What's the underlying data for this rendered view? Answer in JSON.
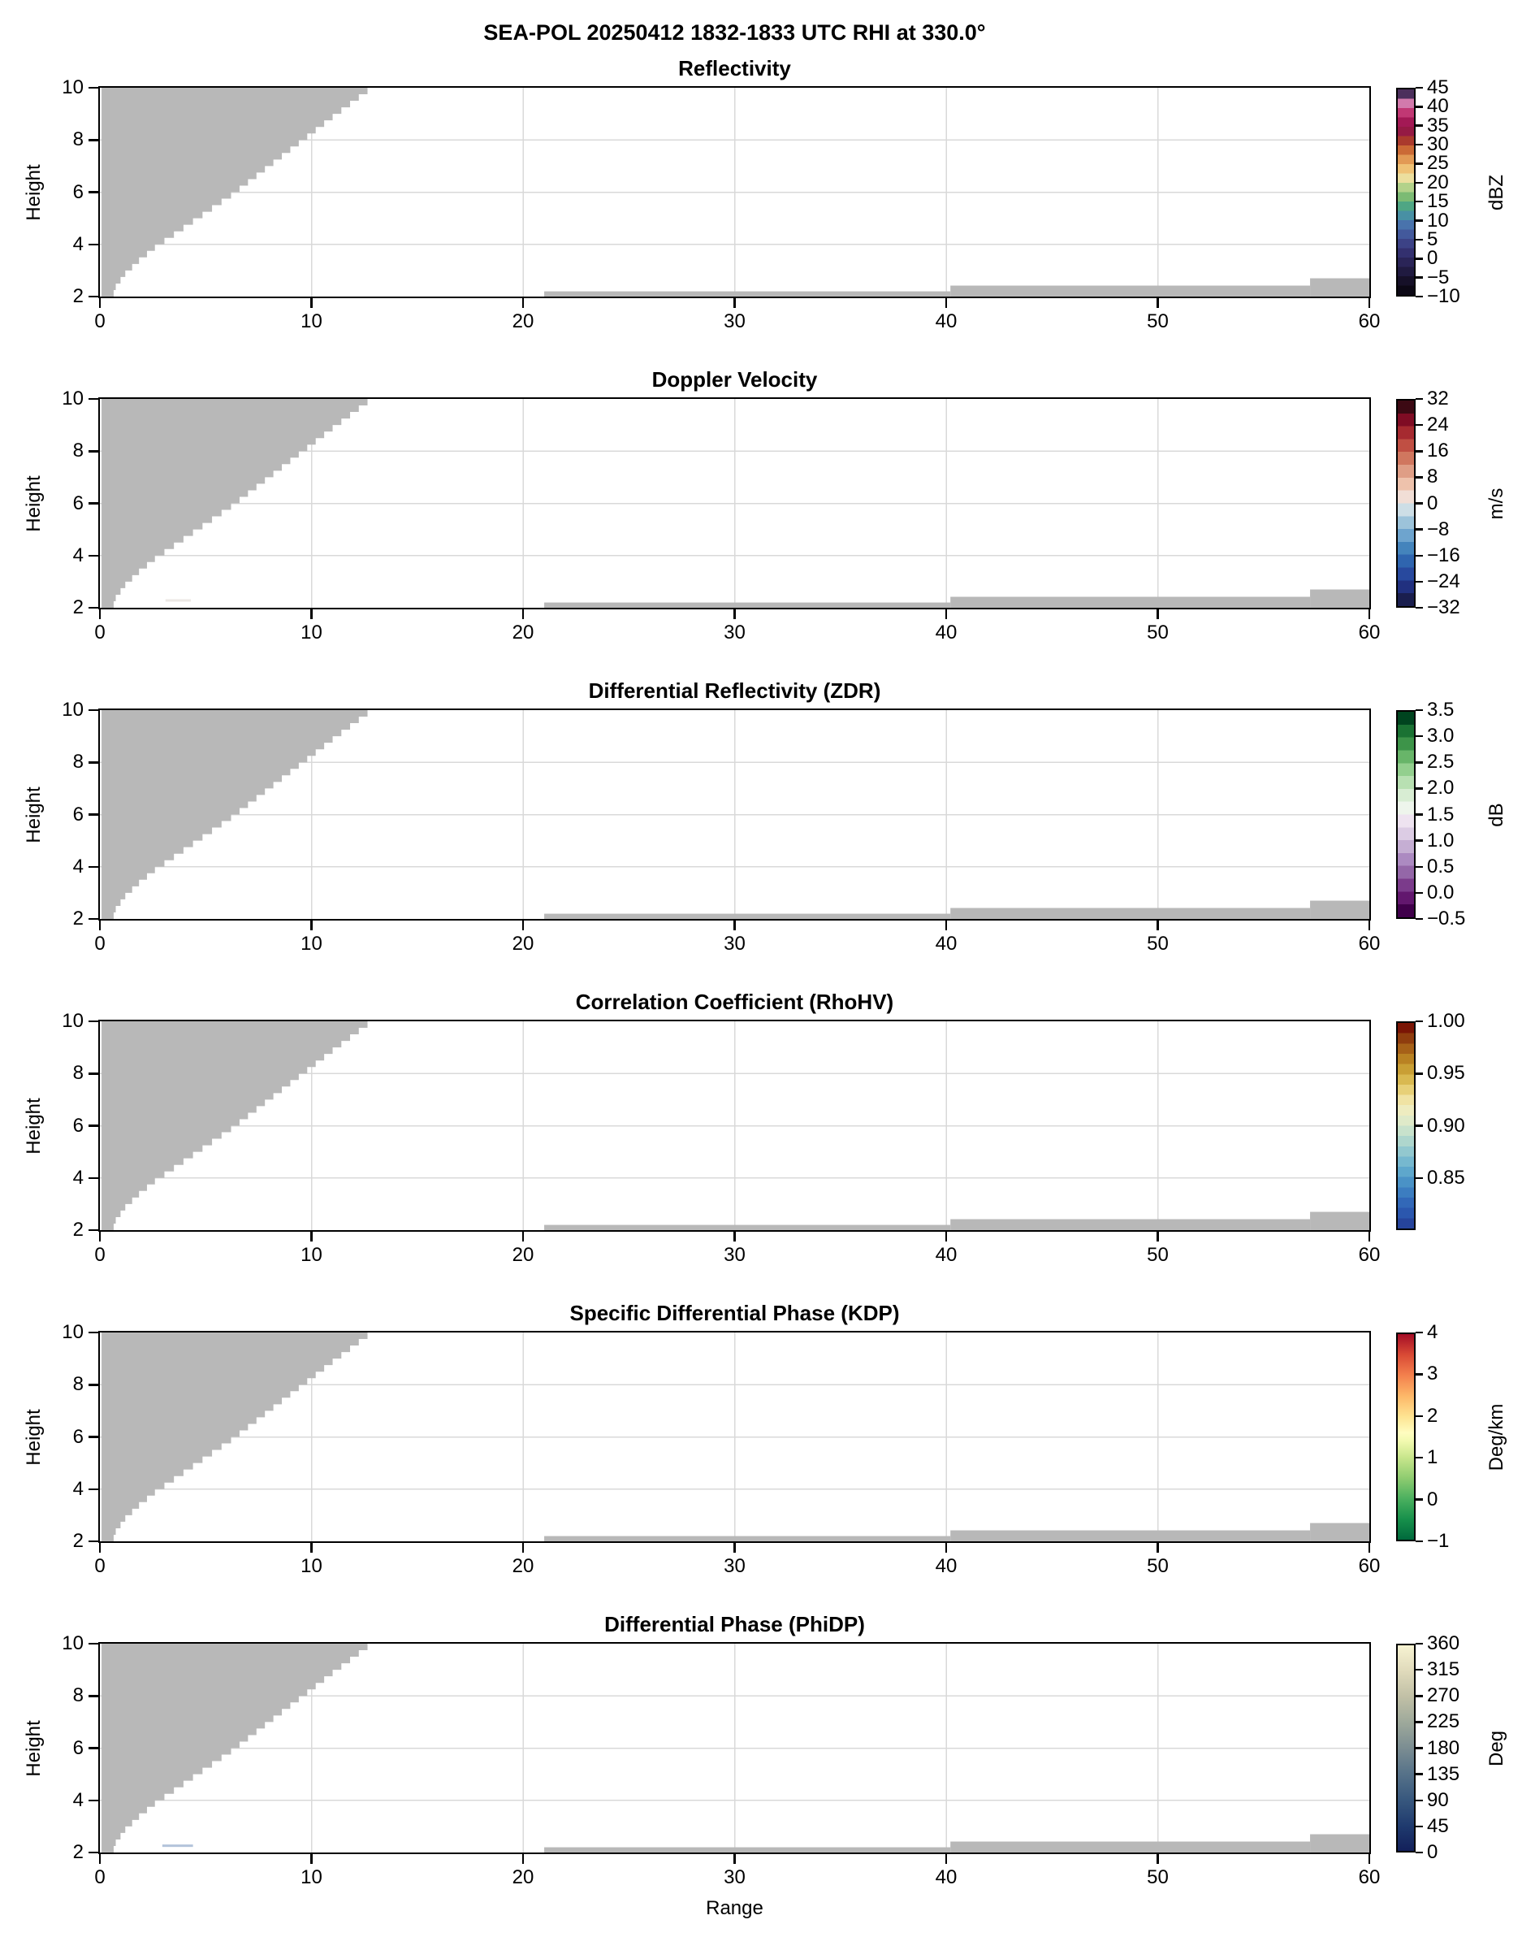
{
  "figure": {
    "suptitle": "SEA-POL 20250412 1832-1833 UTC RHI at 330.0°"
  },
  "chart_data": {
    "type": "heatmap",
    "description": "Six vertically stacked RHI radar cross-section panels sharing identical axes; almost all bins are no-data (gray mask) with a stepped no-data wedge in the upper left and thin no-data strips along the bottom of each panel.",
    "xlabel": "Range",
    "ylabel": "Height",
    "xlim": [
      0,
      60
    ],
    "ylim": [
      2,
      10
    ],
    "x_ticks": [
      0,
      10,
      20,
      30,
      40,
      50,
      60
    ],
    "x_tick_labels": [
      "0",
      "10",
      "20",
      "30",
      "40",
      "50",
      "60"
    ],
    "y_ticks": [
      2,
      4,
      6,
      8,
      10
    ],
    "y_tick_labels": [
      "2",
      "4",
      "6",
      "8",
      "10"
    ],
    "x_grid": [
      10,
      20,
      30,
      40,
      50
    ],
    "y_grid": [
      4,
      6,
      8
    ],
    "grid_color": "#d9d9d9",
    "grid_on": true,
    "no_data_color": "#b8b8b8",
    "no_data_regions": {
      "wedge": {
        "shape": "stepped wedge, gray = masked bins",
        "left_range": 0.08,
        "step_height": 0.25,
        "edge_points": [
          [
            2,
            0.55
          ],
          [
            2.5,
            0.75
          ],
          [
            3,
            1.2
          ],
          [
            3.5,
            1.85
          ],
          [
            4,
            2.6
          ],
          [
            5,
            4.4
          ],
          [
            6,
            6.2
          ],
          [
            7,
            7.8
          ],
          [
            8,
            9.4
          ],
          [
            9,
            11.0
          ],
          [
            10,
            12.65
          ]
        ]
      },
      "strips": [
        {
          "x0": 21.0,
          "x1": 40.2,
          "h_top": 2.2
        },
        {
          "x0": 40.2,
          "x1": 57.2,
          "h_top": 2.42
        },
        {
          "x0": 57.2,
          "x1": 60.0,
          "h_top": 2.7
        }
      ]
    },
    "panels": [
      {
        "title": "Reflectivity",
        "unit": "dBZ",
        "artifact": null,
        "cbar": {
          "vmin": -10,
          "vmax": 45,
          "style": "segmented",
          "colors": [
            "#0c0815",
            "#161028",
            "#201a40",
            "#2a2457",
            "#33306f",
            "#3c4286",
            "#43599c",
            "#4973ac",
            "#4890a4",
            "#4fa684",
            "#7cbb74",
            "#b3d28a",
            "#ecdf9e",
            "#efc276",
            "#e29a55",
            "#cb6a36",
            "#aa3a2d",
            "#951a44",
            "#a31955",
            "#c13874",
            "#d27aac",
            "#4b2f5c"
          ],
          "ticks": [
            {
              "v": 45,
              "label": "45"
            },
            {
              "v": 40,
              "label": "40"
            },
            {
              "v": 35,
              "label": "35"
            },
            {
              "v": 30,
              "label": "30"
            },
            {
              "v": 25,
              "label": "25"
            },
            {
              "v": 20,
              "label": "20"
            },
            {
              "v": 15,
              "label": "15"
            },
            {
              "v": 10,
              "label": "10"
            },
            {
              "v": 5,
              "label": "5"
            },
            {
              "v": 0,
              "label": "0"
            },
            {
              "v": -5,
              "label": "−5"
            },
            {
              "v": -10,
              "label": "−10"
            }
          ]
        }
      },
      {
        "title": "Doppler Velocity",
        "unit": "m/s",
        "artifact": {
          "x0": 3.1,
          "x1": 4.3,
          "h": 2.28,
          "color": "#ece8e4"
        },
        "cbar": {
          "vmin": -32,
          "vmax": 32,
          "style": "segmented",
          "colors": [
            "#1a1e4e",
            "#21307f",
            "#28499e",
            "#2f65af",
            "#4484bc",
            "#6ea4ce",
            "#9cc3da",
            "#cddee6",
            "#f1ded6",
            "#eec2ac",
            "#df9e86",
            "#d0775f",
            "#c04f43",
            "#a62a30",
            "#7f0c24",
            "#3c0913"
          ],
          "ticks": [
            {
              "v": 32,
              "label": "32"
            },
            {
              "v": 24,
              "label": "24"
            },
            {
              "v": 16,
              "label": "16"
            },
            {
              "v": 8,
              "label": "8"
            },
            {
              "v": 0,
              "label": "0"
            },
            {
              "v": -8,
              "label": "−8"
            },
            {
              "v": -16,
              "label": "−16"
            },
            {
              "v": -24,
              "label": "−24"
            },
            {
              "v": -32,
              "label": "−32"
            }
          ]
        }
      },
      {
        "title": "Differential Reflectivity (ZDR)",
        "unit": "dB",
        "artifact": null,
        "cbar": {
          "vmin": -0.5,
          "vmax": 3.5,
          "style": "segmented",
          "colors": [
            "#40004b",
            "#62176e",
            "#7b3b8b",
            "#9467a8",
            "#ac8ac1",
            "#c5aed3",
            "#dccce4",
            "#eee3f0",
            "#eef5ec",
            "#d8edd3",
            "#b8e0b2",
            "#93cf8e",
            "#68b569",
            "#3d9449",
            "#1a7233",
            "#00441f"
          ],
          "ticks": [
            {
              "v": 3.5,
              "label": "3.5"
            },
            {
              "v": 3.0,
              "label": "3.0"
            },
            {
              "v": 2.5,
              "label": "2.5"
            },
            {
              "v": 2.0,
              "label": "2.0"
            },
            {
              "v": 1.5,
              "label": "1.5"
            },
            {
              "v": 1.0,
              "label": "1.0"
            },
            {
              "v": 0.5,
              "label": "0.5"
            },
            {
              "v": 0.0,
              "label": "0.0"
            },
            {
              "v": -0.5,
              "label": "−0.5"
            }
          ]
        }
      },
      {
        "title": "Correlation Coefficient (RhoHV)",
        "unit": null,
        "artifact": null,
        "cbar": {
          "vmin": 0.8,
          "vmax": 1.0,
          "style": "segmented",
          "colors": [
            "#26449c",
            "#2b57ae",
            "#3268b8",
            "#3c7dc0",
            "#4a92c6",
            "#5ea7cc",
            "#76b8cf",
            "#92c8cf",
            "#aed6cd",
            "#c8e2cc",
            "#dfeac9",
            "#eeecc0",
            "#f0e3a4",
            "#e7d078",
            "#d9b951",
            "#c99f35",
            "#b98223",
            "#a66118",
            "#8f3d0e",
            "#7a1505"
          ],
          "ticks": [
            {
              "v": 1.0,
              "label": "1.00"
            },
            {
              "v": 0.95,
              "label": "0.95"
            },
            {
              "v": 0.9,
              "label": "0.90"
            },
            {
              "v": 0.85,
              "label": "0.85"
            }
          ]
        }
      },
      {
        "title": "Specific Differential Phase (KDP)",
        "unit": "Deg/km",
        "artifact": null,
        "cbar": {
          "vmin": -1,
          "vmax": 4,
          "style": "smooth",
          "stops": [
            [
              0,
              "#00693c"
            ],
            [
              0.1,
              "#17904b"
            ],
            [
              0.2,
              "#4bb05f"
            ],
            [
              0.3,
              "#8fcc70"
            ],
            [
              0.4,
              "#c8e68c"
            ],
            [
              0.48,
              "#f2fab0"
            ],
            [
              0.52,
              "#fffdc0"
            ],
            [
              0.6,
              "#fee391"
            ],
            [
              0.7,
              "#fdb768"
            ],
            [
              0.8,
              "#f3804d"
            ],
            [
              0.9,
              "#d94a35"
            ],
            [
              1,
              "#a50d26"
            ]
          ],
          "ticks": [
            {
              "v": 4,
              "label": "4"
            },
            {
              "v": 3,
              "label": "3"
            },
            {
              "v": 2,
              "label": "2"
            },
            {
              "v": 1,
              "label": "1"
            },
            {
              "v": 0,
              "label": "0"
            },
            {
              "v": -1,
              "label": "−1"
            }
          ]
        }
      },
      {
        "title": "Differential Phase (PhiDP)",
        "unit": "Deg",
        "artifact": {
          "x0": 2.95,
          "x1": 4.4,
          "h": 2.26,
          "color": "#b3c3da"
        },
        "cbar": {
          "vmin": 0,
          "vmax": 360,
          "style": "smooth",
          "stops": [
            [
              0,
              "#13205a"
            ],
            [
              0.12,
              "#1f3a6e"
            ],
            [
              0.25,
              "#38587e"
            ],
            [
              0.375,
              "#567289"
            ],
            [
              0.5,
              "#7b8d92"
            ],
            [
              0.625,
              "#9ea99b"
            ],
            [
              0.75,
              "#c1c0a6"
            ],
            [
              0.875,
              "#e0dabb"
            ],
            [
              1,
              "#f7f3d2"
            ]
          ],
          "ticks": [
            {
              "v": 360,
              "label": "360"
            },
            {
              "v": 315,
              "label": "315"
            },
            {
              "v": 270,
              "label": "270"
            },
            {
              "v": 225,
              "label": "225"
            },
            {
              "v": 180,
              "label": "180"
            },
            {
              "v": 135,
              "label": "135"
            },
            {
              "v": 90,
              "label": "90"
            },
            {
              "v": 45,
              "label": "45"
            },
            {
              "v": 0,
              "label": "0"
            }
          ]
        }
      }
    ]
  }
}
